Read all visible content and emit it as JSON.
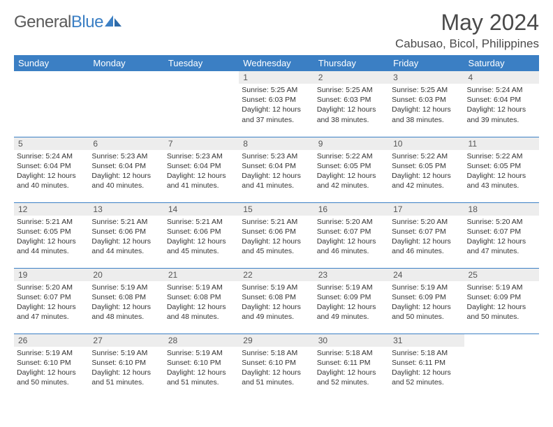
{
  "brand": {
    "text1": "General",
    "text2": "Blue"
  },
  "title": "May 2024",
  "location": "Cabusao, Bicol, Philippines",
  "colors": {
    "header_bg": "#3b7fc4",
    "header_text": "#ffffff",
    "daynum_bg": "#ededed",
    "divider": "#3b7fc4",
    "body_text": "#333333",
    "title_text": "#4a4a4a",
    "logo_gray": "#5a5a5a",
    "logo_blue": "#3b7fc4"
  },
  "day_headers": [
    "Sunday",
    "Monday",
    "Tuesday",
    "Wednesday",
    "Thursday",
    "Friday",
    "Saturday"
  ],
  "weeks": [
    [
      {
        "blank": true
      },
      {
        "blank": true
      },
      {
        "blank": true
      },
      {
        "n": "1",
        "sr": "5:25 AM",
        "ss": "6:03 PM",
        "dl": "12 hours and 37 minutes."
      },
      {
        "n": "2",
        "sr": "5:25 AM",
        "ss": "6:03 PM",
        "dl": "12 hours and 38 minutes."
      },
      {
        "n": "3",
        "sr": "5:25 AM",
        "ss": "6:03 PM",
        "dl": "12 hours and 38 minutes."
      },
      {
        "n": "4",
        "sr": "5:24 AM",
        "ss": "6:04 PM",
        "dl": "12 hours and 39 minutes."
      }
    ],
    [
      {
        "n": "5",
        "sr": "5:24 AM",
        "ss": "6:04 PM",
        "dl": "12 hours and 40 minutes."
      },
      {
        "n": "6",
        "sr": "5:23 AM",
        "ss": "6:04 PM",
        "dl": "12 hours and 40 minutes."
      },
      {
        "n": "7",
        "sr": "5:23 AM",
        "ss": "6:04 PM",
        "dl": "12 hours and 41 minutes."
      },
      {
        "n": "8",
        "sr": "5:23 AM",
        "ss": "6:04 PM",
        "dl": "12 hours and 41 minutes."
      },
      {
        "n": "9",
        "sr": "5:22 AM",
        "ss": "6:05 PM",
        "dl": "12 hours and 42 minutes."
      },
      {
        "n": "10",
        "sr": "5:22 AM",
        "ss": "6:05 PM",
        "dl": "12 hours and 42 minutes."
      },
      {
        "n": "11",
        "sr": "5:22 AM",
        "ss": "6:05 PM",
        "dl": "12 hours and 43 minutes."
      }
    ],
    [
      {
        "n": "12",
        "sr": "5:21 AM",
        "ss": "6:05 PM",
        "dl": "12 hours and 44 minutes."
      },
      {
        "n": "13",
        "sr": "5:21 AM",
        "ss": "6:06 PM",
        "dl": "12 hours and 44 minutes."
      },
      {
        "n": "14",
        "sr": "5:21 AM",
        "ss": "6:06 PM",
        "dl": "12 hours and 45 minutes."
      },
      {
        "n": "15",
        "sr": "5:21 AM",
        "ss": "6:06 PM",
        "dl": "12 hours and 45 minutes."
      },
      {
        "n": "16",
        "sr": "5:20 AM",
        "ss": "6:07 PM",
        "dl": "12 hours and 46 minutes."
      },
      {
        "n": "17",
        "sr": "5:20 AM",
        "ss": "6:07 PM",
        "dl": "12 hours and 46 minutes."
      },
      {
        "n": "18",
        "sr": "5:20 AM",
        "ss": "6:07 PM",
        "dl": "12 hours and 47 minutes."
      }
    ],
    [
      {
        "n": "19",
        "sr": "5:20 AM",
        "ss": "6:07 PM",
        "dl": "12 hours and 47 minutes."
      },
      {
        "n": "20",
        "sr": "5:19 AM",
        "ss": "6:08 PM",
        "dl": "12 hours and 48 minutes."
      },
      {
        "n": "21",
        "sr": "5:19 AM",
        "ss": "6:08 PM",
        "dl": "12 hours and 48 minutes."
      },
      {
        "n": "22",
        "sr": "5:19 AM",
        "ss": "6:08 PM",
        "dl": "12 hours and 49 minutes."
      },
      {
        "n": "23",
        "sr": "5:19 AM",
        "ss": "6:09 PM",
        "dl": "12 hours and 49 minutes."
      },
      {
        "n": "24",
        "sr": "5:19 AM",
        "ss": "6:09 PM",
        "dl": "12 hours and 50 minutes."
      },
      {
        "n": "25",
        "sr": "5:19 AM",
        "ss": "6:09 PM",
        "dl": "12 hours and 50 minutes."
      }
    ],
    [
      {
        "n": "26",
        "sr": "5:19 AM",
        "ss": "6:10 PM",
        "dl": "12 hours and 50 minutes."
      },
      {
        "n": "27",
        "sr": "5:19 AM",
        "ss": "6:10 PM",
        "dl": "12 hours and 51 minutes."
      },
      {
        "n": "28",
        "sr": "5:19 AM",
        "ss": "6:10 PM",
        "dl": "12 hours and 51 minutes."
      },
      {
        "n": "29",
        "sr": "5:18 AM",
        "ss": "6:10 PM",
        "dl": "12 hours and 51 minutes."
      },
      {
        "n": "30",
        "sr": "5:18 AM",
        "ss": "6:11 PM",
        "dl": "12 hours and 52 minutes."
      },
      {
        "n": "31",
        "sr": "5:18 AM",
        "ss": "6:11 PM",
        "dl": "12 hours and 52 minutes."
      },
      {
        "blank": true
      }
    ]
  ],
  "labels": {
    "sunrise": "Sunrise: ",
    "sunset": "Sunset: ",
    "daylight": "Daylight: "
  }
}
